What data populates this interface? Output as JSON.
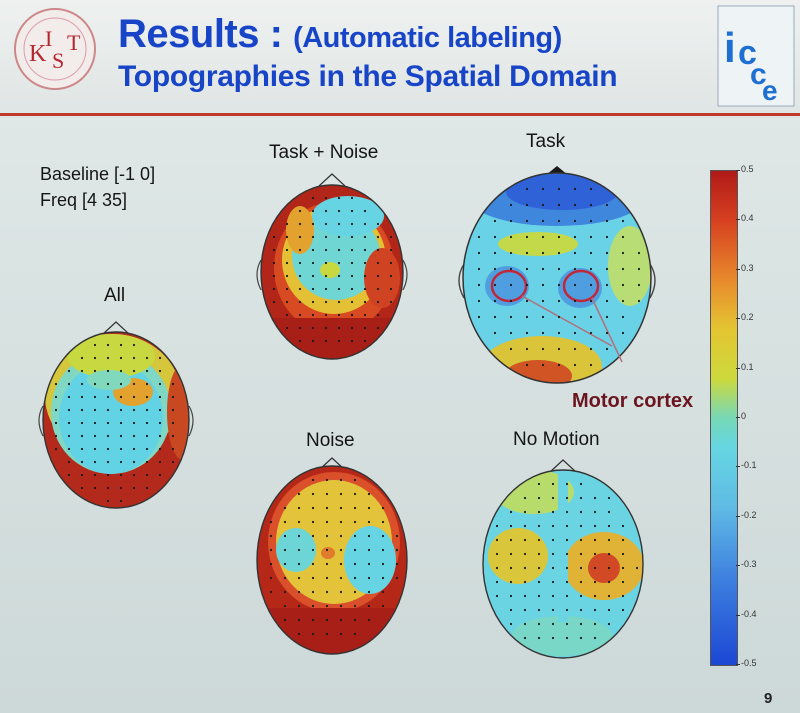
{
  "title": {
    "line1_main": "Results :",
    "line1_sub": "(Automatic labeling)",
    "line2": "Topographies in the Spatial Domain"
  },
  "logos": {
    "left": "KIST",
    "right": "icce"
  },
  "notes": {
    "baseline": "Baseline [-1 0]",
    "freq": "Freq [4 35]"
  },
  "maps": {
    "all": "All",
    "task_noise": "Task + Noise",
    "task": "Task",
    "noise": "Noise",
    "no_motion": "No Motion"
  },
  "annotation": "Motor cortex",
  "colorbar": {
    "ticks": [
      "0.5",
      "0.4",
      "0.3",
      "0.2",
      "0.1",
      "0",
      "-0.1",
      "-0.2",
      "-0.3",
      "-0.4",
      "-0.5"
    ]
  },
  "page_number": "9",
  "colors": {
    "title": "#1845c8",
    "rule": "#c0392b",
    "annotation": "#6b1520"
  }
}
